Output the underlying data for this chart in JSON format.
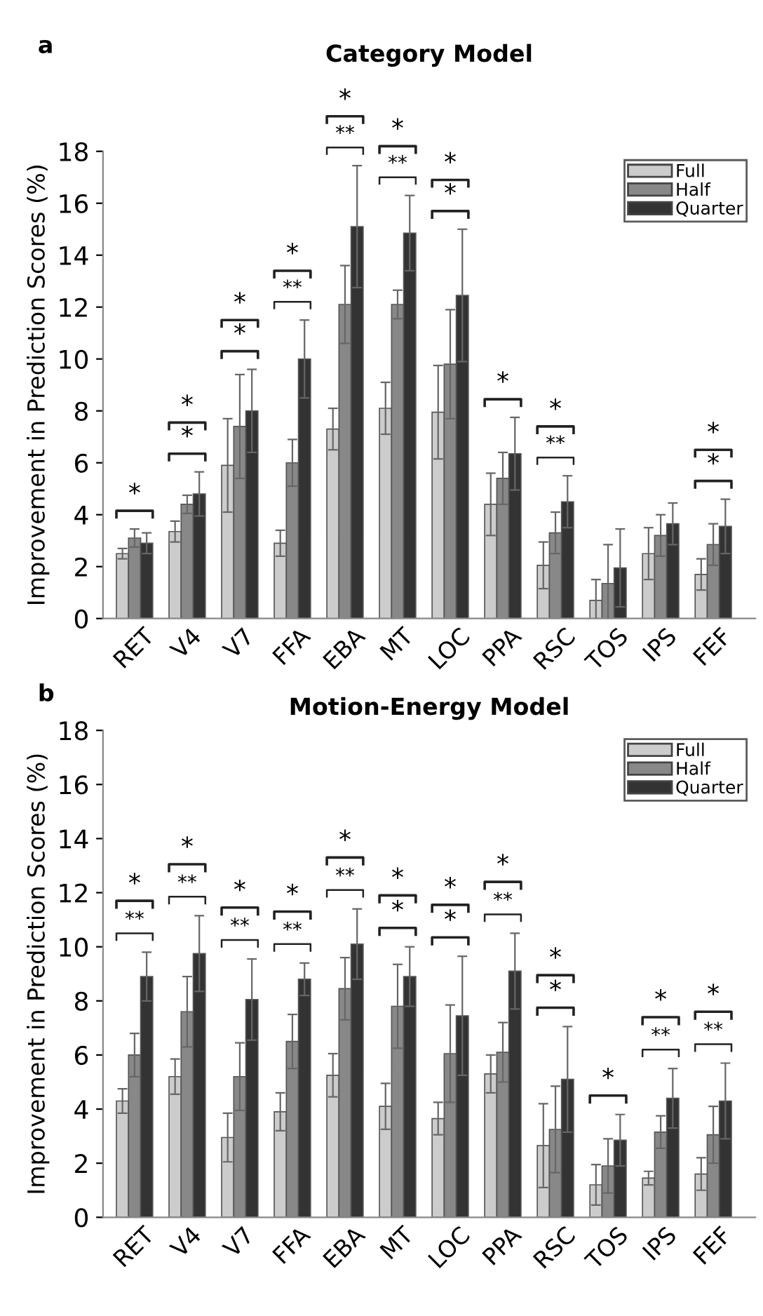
{
  "chart_data": [
    {
      "type": "bar",
      "title": "Category Model",
      "ylabel": "Improvement in Prediction Scores (%)",
      "categories": [
        "RET",
        "V4",
        "V7",
        "FFA",
        "EBA",
        "MT",
        "LOC",
        "PPA",
        "RSC",
        "TOS",
        "IPS",
        "FEF"
      ],
      "series": [
        {
          "name": "Full",
          "color": "#cccccc",
          "values": [
            2.5,
            3.35,
            5.9,
            2.9,
            7.3,
            8.1,
            7.95,
            4.4,
            2.05,
            0.7,
            2.5,
            1.7
          ],
          "errors": [
            0.2,
            0.4,
            1.8,
            0.5,
            0.8,
            1.0,
            1.8,
            1.2,
            0.9,
            0.8,
            1.0,
            0.6
          ]
        },
        {
          "name": "Half",
          "color": "#888888",
          "values": [
            3.1,
            4.4,
            7.4,
            6.0,
            12.1,
            12.1,
            9.8,
            5.4,
            3.3,
            1.35,
            3.2,
            2.85
          ],
          "errors": [
            0.35,
            0.35,
            2.0,
            0.9,
            1.5,
            0.55,
            2.1,
            1.0,
            0.8,
            1.5,
            0.8,
            0.8
          ]
        },
        {
          "name": "Quarter",
          "color": "#333333",
          "values": [
            2.9,
            4.8,
            8.0,
            10.0,
            15.1,
            14.85,
            12.45,
            6.35,
            4.5,
            1.95,
            3.65,
            3.55
          ],
          "errors": [
            0.4,
            0.85,
            1.6,
            1.5,
            2.35,
            1.45,
            2.55,
            1.4,
            1.0,
            1.5,
            0.8,
            1.05
          ]
        }
      ],
      "ylim": [
        0,
        18
      ],
      "yticks": [
        0,
        2,
        4,
        6,
        8,
        10,
        12,
        14,
        16,
        18
      ],
      "legend": "top right",
      "grid": false,
      "annotations": [
        "a",
        "*",
        "*",
        "*",
        "*",
        "*",
        "**",
        "*",
        "**",
        "*",
        "**",
        "*",
        "*",
        "*",
        "*",
        "**",
        "*",
        "*",
        "*"
      ]
    },
    {
      "type": "bar",
      "title": "Motion-Energy Model",
      "ylabel": "Improvement in Prediction Scores (%)",
      "categories": [
        "RET",
        "V4",
        "V7",
        "FFA",
        "EBA",
        "MT",
        "LOC",
        "PPA",
        "RSC",
        "TOS",
        "IPS",
        "FEF"
      ],
      "series": [
        {
          "name": "Full",
          "color": "#cccccc",
          "values": [
            4.3,
            5.2,
            2.95,
            3.9,
            5.25,
            4.1,
            3.65,
            5.3,
            2.65,
            1.2,
            1.45,
            1.6
          ],
          "errors": [
            0.45,
            0.65,
            0.9,
            0.7,
            0.8,
            0.85,
            0.6,
            0.7,
            1.55,
            0.75,
            0.25,
            0.6
          ]
        },
        {
          "name": "Half",
          "color": "#888888",
          "values": [
            6.0,
            7.6,
            5.2,
            6.5,
            8.45,
            7.8,
            6.05,
            6.1,
            3.25,
            1.9,
            3.15,
            3.05
          ],
          "errors": [
            0.8,
            1.3,
            1.25,
            1.0,
            1.15,
            1.55,
            1.8,
            1.1,
            1.6,
            1.0,
            0.6,
            1.05
          ]
        },
        {
          "name": "Quarter",
          "color": "#333333",
          "values": [
            8.9,
            9.75,
            8.05,
            8.8,
            10.1,
            8.9,
            7.45,
            9.1,
            5.1,
            2.85,
            4.4,
            4.3
          ],
          "errors": [
            0.9,
            1.4,
            1.5,
            0.6,
            1.3,
            1.1,
            2.2,
            1.4,
            1.95,
            0.95,
            1.1,
            1.4
          ]
        }
      ],
      "ylim": [
        0,
        18
      ],
      "yticks": [
        0,
        2,
        4,
        6,
        8,
        10,
        12,
        14,
        16,
        18
      ],
      "legend": "top right",
      "grid": false,
      "annotations": [
        "b",
        "**",
        "*",
        "**",
        "*",
        "**",
        "*",
        "**",
        "*",
        "**",
        "*",
        "*",
        "*",
        "*",
        "*",
        "**",
        "*",
        "*",
        "*",
        "*",
        "**",
        "*",
        "**",
        "*"
      ]
    }
  ]
}
